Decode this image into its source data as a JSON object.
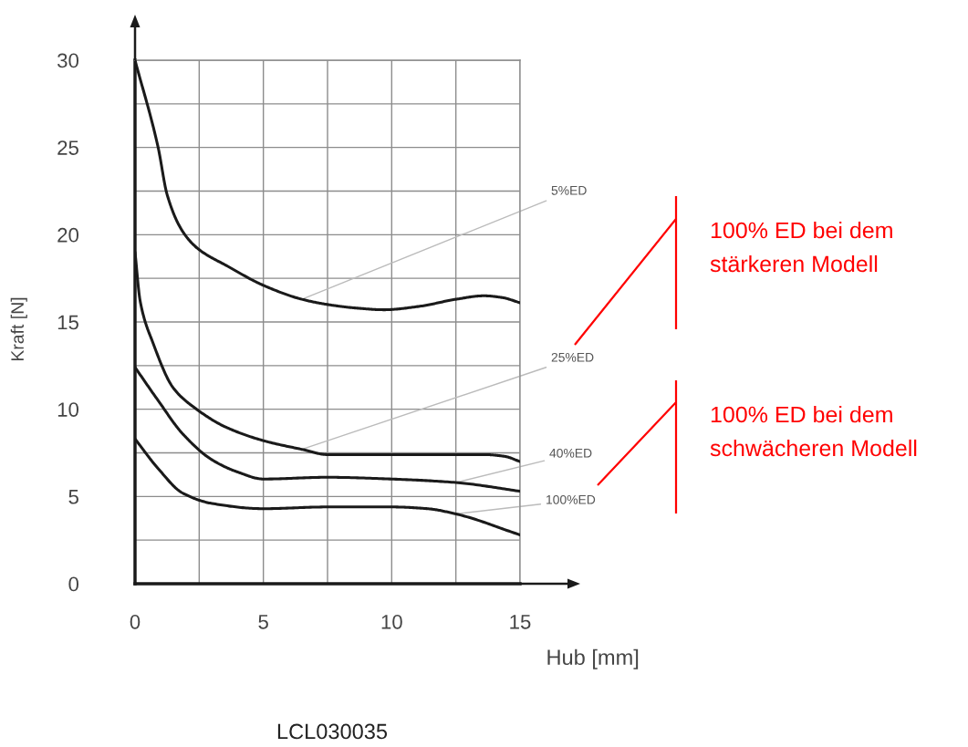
{
  "chart_data": {
    "type": "line",
    "xlabel": "Hub [mm]",
    "ylabel": "Kraft [N]",
    "xlim": [
      0,
      15
    ],
    "ylim": [
      0,
      30
    ],
    "xticks": [
      0,
      {
        "value": 2.5,
        "label": null
      },
      5,
      {
        "value": 7.5,
        "label": null
      },
      10,
      {
        "value": 12.5,
        "label": null
      },
      15
    ],
    "yticks": [
      0,
      {
        "value": 2.5,
        "label": null
      },
      5,
      {
        "value": 7.5,
        "label": null
      },
      10,
      {
        "value": 12.5,
        "label": null
      },
      15,
      {
        "value": 17.5,
        "label": null
      },
      20,
      {
        "value": 22.5,
        "label": null
      },
      25,
      {
        "value": 27.5,
        "label": null
      },
      30
    ],
    "grid": true,
    "series": [
      {
        "name": "5%ED",
        "color": "#1a1a1a",
        "x": [
          0,
          0.9,
          1.25,
          1.85,
          2.45,
          3.6,
          5,
          6.5,
          7.5,
          8.6,
          9.7,
          11.1,
          12.5,
          13.6,
          14.3,
          15
        ],
        "values": [
          30,
          25,
          22.3,
          20.2,
          19.2,
          18.2,
          17.1,
          16.3,
          16.0,
          15.8,
          15.7,
          15.9,
          16.3,
          16.5,
          16.4,
          16.1
        ]
      },
      {
        "name": "25%ED",
        "color": "#1a1a1a",
        "x": [
          0,
          0.2,
          0.7,
          1.5,
          2.4,
          3.5,
          5,
          6.5,
          7.5,
          8.5,
          10,
          12.5,
          13.6,
          14.4,
          15
        ],
        "values": [
          19.0,
          16.2,
          13.8,
          11.2,
          10.0,
          9.0,
          8.2,
          7.7,
          7.4,
          7.4,
          7.4,
          7.4,
          7.4,
          7.3,
          7.0
        ]
      },
      {
        "name": "40%ED",
        "color": "#1a1a1a",
        "x": [
          0,
          0.9,
          1.85,
          3.0,
          4.0,
          5,
          7.5,
          10,
          12.5,
          15
        ],
        "values": [
          12.4,
          10.5,
          8.6,
          7.1,
          6.4,
          6.0,
          6.1,
          6.0,
          5.8,
          5.3
        ]
      },
      {
        "name": "100%ED",
        "color": "#1a1a1a",
        "x": [
          0,
          0.9,
          1.85,
          3.0,
          5,
          7.5,
          10,
          11.4,
          12.5,
          15
        ],
        "values": [
          8.3,
          6.6,
          5.2,
          4.6,
          4.3,
          4.4,
          4.4,
          4.3,
          4.0,
          2.8
        ]
      }
    ],
    "annotations": [
      "100% ED bei dem stärkeren Modell",
      "100% ED bei dem schwächeren Modell",
      "LCL030035"
    ]
  }
}
